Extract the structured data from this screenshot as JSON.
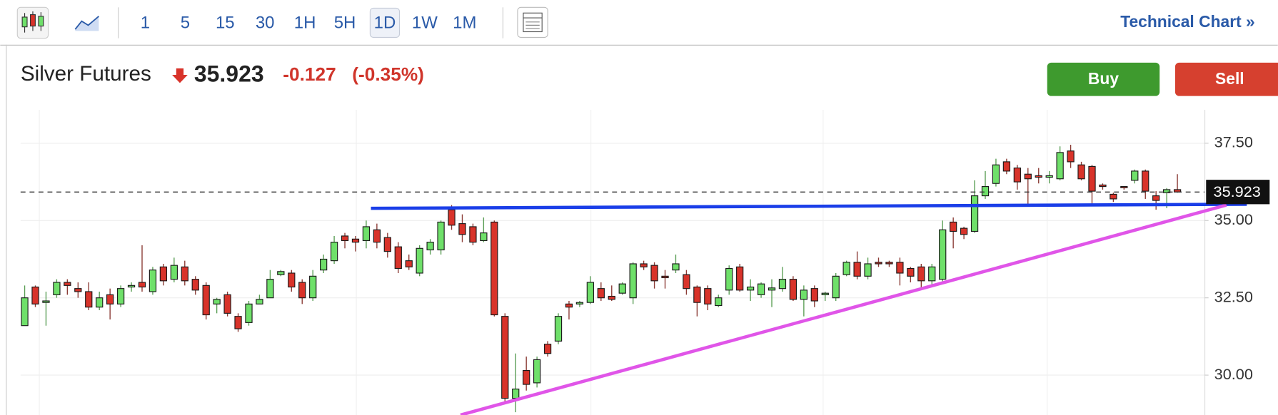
{
  "toolbar": {
    "intervals": [
      "1",
      "5",
      "15",
      "30",
      "1H",
      "5H",
      "1D",
      "1W",
      "1M"
    ],
    "selected_interval": 6,
    "technical_chart": "Technical Chart »"
  },
  "header": {
    "title": "Silver Futures",
    "price": "35.923",
    "change": "-0.127",
    "change_percent": "(-0.35%)",
    "buy": "Buy",
    "sell": "Sell"
  },
  "chart_data": {
    "type": "candlestick",
    "up_color": "#6fe06a",
    "down_color": "#d8332a",
    "open": [
      31.6,
      32.85,
      32.35,
      32.6,
      33.0,
      32.8,
      32.7,
      32.2,
      32.6,
      32.3,
      32.85,
      33.0,
      32.7,
      33.5,
      33.1,
      33.5,
      33.1,
      32.9,
      32.3,
      32.6,
      31.9,
      31.7,
      32.3,
      32.5,
      33.25,
      33.3,
      33.0,
      32.5,
      33.4,
      33.7,
      34.5,
      34.4,
      34.35,
      34.7,
      34.45,
      34.15,
      33.7,
      33.3,
      34.05,
      34.05,
      35.35,
      34.9,
      34.8,
      34.35,
      34.95,
      31.9,
      29.25,
      30.15,
      29.75,
      31.0,
      31.1,
      32.3,
      32.3,
      32.35,
      32.8,
      32.55,
      32.65,
      32.5,
      33.6,
      33.55,
      33.2,
      33.4,
      33.25,
      32.85,
      32.8,
      32.25,
      32.75,
      33.5,
      32.75,
      32.6,
      32.75,
      32.8,
      33.1,
      32.45,
      32.8,
      32.6,
      32.5,
      33.25,
      33.65,
      33.2,
      33.65,
      33.65,
      33.65,
      33.45,
      33.5,
      33.05,
      33.1,
      34.95,
      34.75,
      34.65,
      35.8,
      36.2,
      36.9,
      36.7,
      36.5,
      36.45,
      36.4,
      36.35,
      37.25,
      36.8,
      36.75,
      36.15,
      35.85,
      36.1,
      36.3,
      36.6,
      35.8,
      35.9,
      36.0
    ],
    "high": [
      32.9,
      32.9,
      32.7,
      33.1,
      33.1,
      33.0,
      33.0,
      32.7,
      32.8,
      32.9,
      33.0,
      34.2,
      33.5,
      33.6,
      33.8,
      33.7,
      33.2,
      33.0,
      32.5,
      32.7,
      32.0,
      32.4,
      32.6,
      33.4,
      33.4,
      33.4,
      33.1,
      33.4,
      33.9,
      34.5,
      34.6,
      34.5,
      35.0,
      34.9,
      34.6,
      34.3,
      33.9,
      34.2,
      34.4,
      35.0,
      35.5,
      35.2,
      34.9,
      35.1,
      35.0,
      32.0,
      30.7,
      30.6,
      30.6,
      31.1,
      32.0,
      32.4,
      32.4,
      33.2,
      33.0,
      32.9,
      33.0,
      33.65,
      33.7,
      33.65,
      33.4,
      33.9,
      33.4,
      32.9,
      32.9,
      32.6,
      33.55,
      33.6,
      33.1,
      33.0,
      33.1,
      33.5,
      33.2,
      32.9,
      32.9,
      32.7,
      33.3,
      33.7,
      34.0,
      33.8,
      33.8,
      33.7,
      33.8,
      33.5,
      33.6,
      33.6,
      35.0,
      35.1,
      34.8,
      36.3,
      36.6,
      37.0,
      37.0,
      36.8,
      36.7,
      36.7,
      36.6,
      37.4,
      37.45,
      36.9,
      36.8,
      36.2,
      35.9,
      36.1,
      36.65,
      36.65,
      35.95,
      36.05,
      36.5
    ],
    "low": [
      31.6,
      32.2,
      31.6,
      32.5,
      32.6,
      32.5,
      32.1,
      32.1,
      31.8,
      32.2,
      32.7,
      32.7,
      32.6,
      32.9,
      33.0,
      32.9,
      32.6,
      31.8,
      32.0,
      31.9,
      31.4,
      31.6,
      32.3,
      32.5,
      33.2,
      32.7,
      32.3,
      32.4,
      33.3,
      33.6,
      34.1,
      34.0,
      34.1,
      34.1,
      33.8,
      33.3,
      33.4,
      33.2,
      33.9,
      33.9,
      34.7,
      34.3,
      34.2,
      34.3,
      31.9,
      29.1,
      28.8,
      29.5,
      29.6,
      30.6,
      31.0,
      31.8,
      32.2,
      32.3,
      32.4,
      32.4,
      32.6,
      32.3,
      33.4,
      32.8,
      32.8,
      33.3,
      32.6,
      31.9,
      32.1,
      32.2,
      32.6,
      32.7,
      32.4,
      32.5,
      32.2,
      32.7,
      32.4,
      31.9,
      32.2,
      32.4,
      32.4,
      33.2,
      33.1,
      33.1,
      33.5,
      33.5,
      32.9,
      33.0,
      32.8,
      32.9,
      33.0,
      34.1,
      34.4,
      34.6,
      35.7,
      36.1,
      36.5,
      36.0,
      35.5,
      36.2,
      36.2,
      36.3,
      36.7,
      36.3,
      35.5,
      36.0,
      35.6,
      36.0,
      36.2,
      35.7,
      35.35,
      35.4,
      35.9
    ],
    "close": [
      32.5,
      32.3,
      32.4,
      33.0,
      32.9,
      32.7,
      32.2,
      32.5,
      32.3,
      32.8,
      32.9,
      32.85,
      33.4,
      33.05,
      33.55,
      33.05,
      32.75,
      31.95,
      32.45,
      32.0,
      31.5,
      32.3,
      32.45,
      33.1,
      33.35,
      32.85,
      32.5,
      33.2,
      33.75,
      34.3,
      34.35,
      34.3,
      34.8,
      34.3,
      34.0,
      33.45,
      33.5,
      34.1,
      34.3,
      34.95,
      34.85,
      34.55,
      34.3,
      34.6,
      31.95,
      29.25,
      29.55,
      29.7,
      30.5,
      30.7,
      31.9,
      32.2,
      32.35,
      33.0,
      32.5,
      32.45,
      32.95,
      33.6,
      33.5,
      33.05,
      33.15,
      33.6,
      32.8,
      32.35,
      32.3,
      32.5,
      33.45,
      32.75,
      32.85,
      32.95,
      32.82,
      33.1,
      32.45,
      32.75,
      32.4,
      32.65,
      33.2,
      33.65,
      33.2,
      33.6,
      33.6,
      33.6,
      33.3,
      33.2,
      33.05,
      33.5,
      34.7,
      34.65,
      34.55,
      35.8,
      36.1,
      36.8,
      36.6,
      36.25,
      36.35,
      36.4,
      36.45,
      37.2,
      36.9,
      36.35,
      35.95,
      36.1,
      35.7,
      36.08,
      36.6,
      35.95,
      35.65,
      36.0,
      35.923
    ],
    "last_price": 35.923,
    "ylim": [
      28.71,
      38.58
    ],
    "yticks": [
      {
        "value": 30,
        "label": "30.00"
      },
      {
        "value": 32.5,
        "label": "32.50"
      },
      {
        "value": 35,
        "label": "35.00"
      },
      {
        "value": 37.5,
        "label": "37.50"
      }
    ],
    "grid": true
  }
}
